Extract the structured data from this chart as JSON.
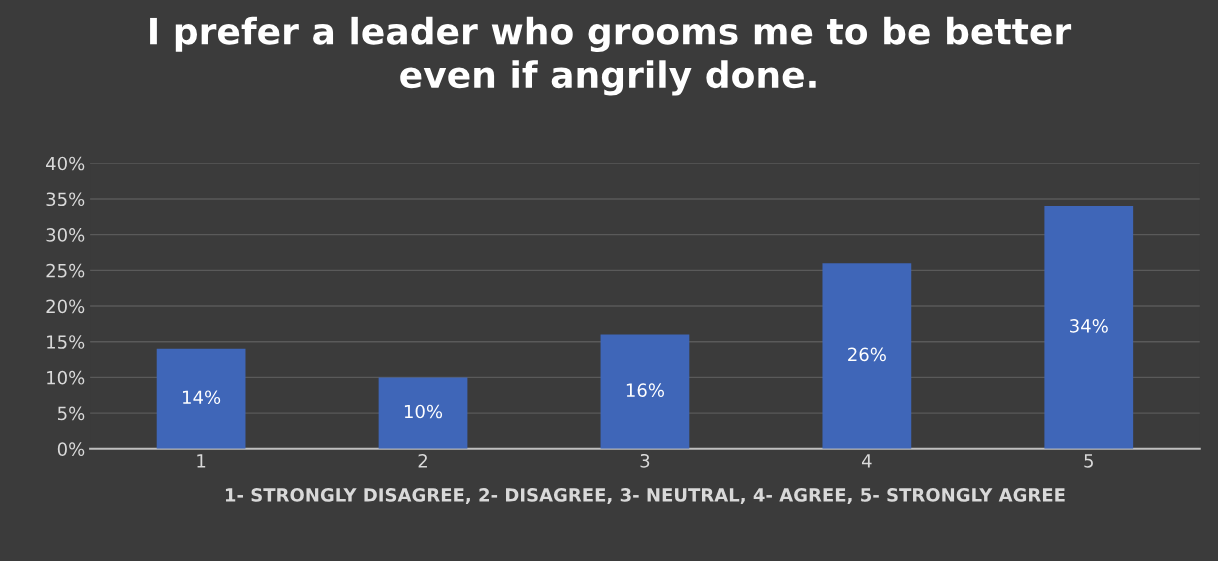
{
  "chart_data": {
    "type": "bar",
    "title": "I prefer a leader who grooms me to be better\neven if angrily done.",
    "xlabel": "1- STRONGLY DISAGREE, 2- DISAGREE, 3- NEUTRAL, 4- AGREE, 5- STRONGLY AGREE",
    "categories": [
      "1",
      "2",
      "3",
      "4",
      "5"
    ],
    "values": [
      14,
      10,
      16,
      26,
      34
    ],
    "value_labels": [
      "14%",
      "10%",
      "16%",
      "26%",
      "34%"
    ],
    "color": "#3f66b8",
    "ylim": [
      0,
      40
    ],
    "yticks": [
      {
        "value": 0,
        "label": "0%"
      },
      {
        "value": 5,
        "label": "5%"
      },
      {
        "value": 10,
        "label": "10%"
      },
      {
        "value": 15,
        "label": "15%"
      },
      {
        "value": 20,
        "label": "20%"
      },
      {
        "value": 25,
        "label": "25%"
      },
      {
        "value": 30,
        "label": "30%"
      },
      {
        "value": 35,
        "label": "35%"
      },
      {
        "value": 40,
        "label": "40%"
      }
    ],
    "grid": "y",
    "legend": false
  }
}
